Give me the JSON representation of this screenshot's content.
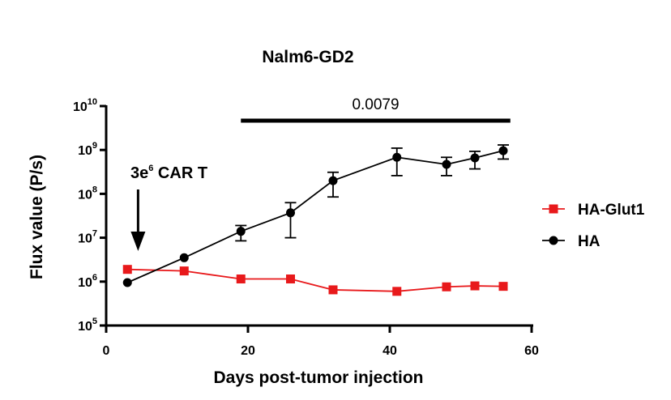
{
  "chart_data": {
    "type": "line",
    "title": "Nalm6-GD2",
    "xlabel": "Days post-tumor injection",
    "ylabel": "Flux value (P/s)",
    "xlim": [
      0,
      60
    ],
    "x_ticks": [
      {
        "value": 0,
        "label": "0"
      },
      {
        "value": 20,
        "label": "20"
      },
      {
        "value": 40,
        "label": "40"
      },
      {
        "value": 60,
        "label": "60"
      }
    ],
    "y_scale": "log",
    "ylim": [
      100000,
      10000000000
    ],
    "y_ticks": [
      {
        "value": 100000,
        "base": "10",
        "exp": "5"
      },
      {
        "value": 1000000,
        "base": "10",
        "exp": "6"
      },
      {
        "value": 10000000,
        "base": "10",
        "exp": "7"
      },
      {
        "value": 100000000,
        "base": "10",
        "exp": "8"
      },
      {
        "value": 1000000000,
        "base": "10",
        "exp": "9"
      },
      {
        "value": 10000000000,
        "base": "10",
        "exp": "10"
      }
    ],
    "grid": false,
    "legend": "right",
    "series": [
      {
        "name": "HA-Glut1",
        "color": "#e8191b",
        "marker": "square",
        "points": [
          {
            "x": 3,
            "y": 1900000
          },
          {
            "x": 11,
            "y": 1750000
          },
          {
            "x": 19,
            "y": 1150000
          },
          {
            "x": 26,
            "y": 1150000
          },
          {
            "x": 32,
            "y": 650000
          },
          {
            "x": 41,
            "y": 600000
          },
          {
            "x": 48,
            "y": 760000
          },
          {
            "x": 52,
            "y": 800000
          },
          {
            "x": 56,
            "y": 780000
          }
        ]
      },
      {
        "name": "HA",
        "color": "#000000",
        "marker": "circle",
        "points": [
          {
            "x": 3,
            "y": 950000
          },
          {
            "x": 11,
            "y": 3500000
          },
          {
            "x": 19,
            "y": 14000000,
            "err_low": 8500000,
            "err_high": 19000000
          },
          {
            "x": 26,
            "y": 37000000,
            "err_low": 10000000,
            "err_high": 63000000
          },
          {
            "x": 32,
            "y": 200000000,
            "err_low": 85000000,
            "err_high": 310000000
          },
          {
            "x": 41,
            "y": 680000000,
            "err_low": 260000000,
            "err_high": 1100000000
          },
          {
            "x": 48,
            "y": 470000000,
            "err_low": 260000000,
            "err_high": 680000000
          },
          {
            "x": 52,
            "y": 660000000,
            "err_low": 370000000,
            "err_high": 930000000
          },
          {
            "x": 56,
            "y": 960000000,
            "err_low": 620000000,
            "err_high": 1300000000
          }
        ]
      }
    ],
    "annotations": {
      "treatment": {
        "base": "3e",
        "exp": "6",
        "rest": " CAR T",
        "x": 4.5
      },
      "significance": {
        "label": "0.0079",
        "x_start": 19,
        "x_end": 57
      }
    }
  }
}
